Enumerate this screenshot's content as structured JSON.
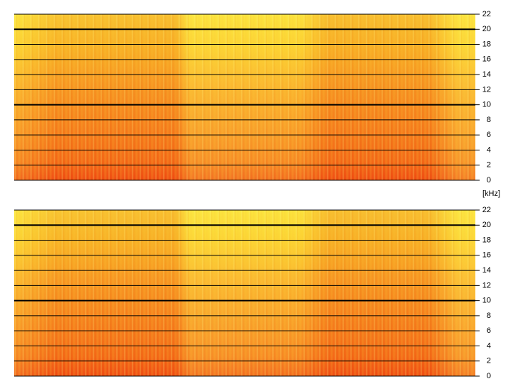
{
  "ylabel": "[kHz]",
  "chart_data": [
    {
      "type": "spectrogram",
      "ylim": [
        0,
        22
      ],
      "yticks": [
        0,
        2,
        4,
        6,
        8,
        10,
        12,
        14,
        16,
        18,
        20,
        22
      ],
      "grid": true
    },
    {
      "type": "spectrogram",
      "ylim": [
        0,
        22
      ],
      "yticks": [
        0,
        2,
        4,
        6,
        8,
        10,
        12,
        14,
        16,
        18,
        20,
        22
      ],
      "grid": true
    }
  ]
}
